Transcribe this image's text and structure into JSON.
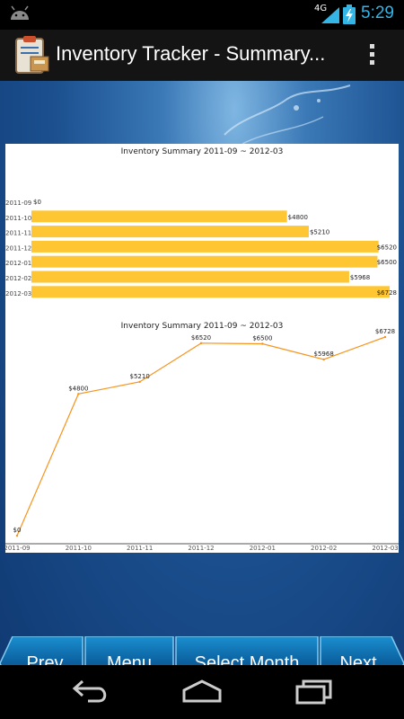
{
  "status_bar": {
    "network_label": "4G",
    "time": "5:29",
    "colors": {
      "clock": "#33b5e5"
    }
  },
  "action_bar": {
    "title": "Inventory Tracker - Summary...",
    "app_icon": "inventory-clipboard-icon",
    "overflow_icon": "overflow-menu-icon"
  },
  "toolbar": {
    "prev_label": "Prev",
    "menu_label": "Menu",
    "select_month_label": "Select Month",
    "next_label": "Next"
  },
  "nav_bar": {
    "back_icon": "back-icon",
    "home_icon": "home-icon",
    "recents_icon": "recent-apps-icon"
  },
  "chart_data": [
    {
      "type": "bar",
      "orientation": "horizontal",
      "title": "Inventory Summary 2011-09 ~ 2012-03",
      "categories": [
        "2011-09",
        "2011-10",
        "2011-11",
        "2011-12",
        "2012-01",
        "2012-02",
        "2012-03"
      ],
      "values": [
        0,
        4800,
        5210,
        6520,
        6500,
        5968,
        6728
      ],
      "value_labels": [
        "$0",
        "$4800",
        "$5210",
        "$6520",
        "$6500",
        "$5968",
        "$6728"
      ],
      "color": "#fdc632",
      "grid": false,
      "legend": "none"
    },
    {
      "type": "line",
      "title": "Inventory Summary 2011-09 ~ 2012-03",
      "categories": [
        "2011-09",
        "2011-10",
        "2011-11",
        "2011-12",
        "2012-01",
        "2012-02",
        "2012-03"
      ],
      "values": [
        0,
        4800,
        5210,
        6520,
        6500,
        5968,
        6728
      ],
      "value_labels": [
        "$0",
        "$4800",
        "$5210",
        "$6520",
        "$6500",
        "$5968",
        "$6728"
      ],
      "color": "#f7941d",
      "grid": false,
      "legend": "none"
    }
  ]
}
